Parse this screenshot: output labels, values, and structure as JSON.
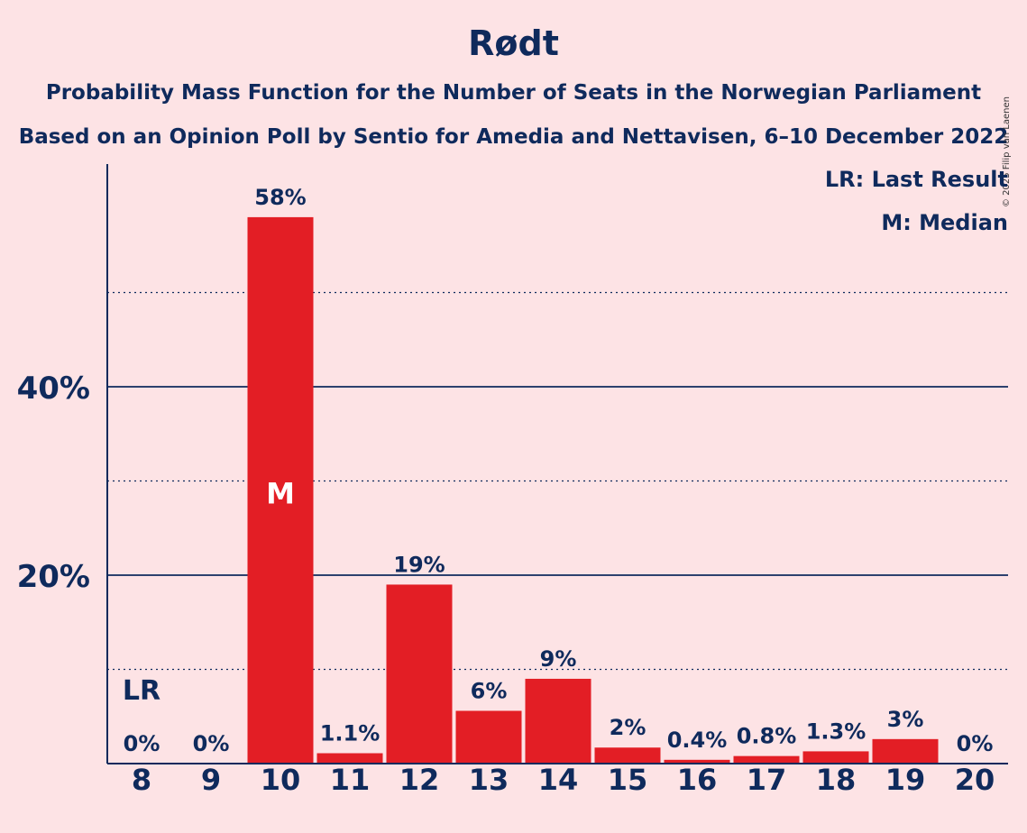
{
  "chart_data": {
    "type": "bar",
    "title": "Rødt",
    "subtitle_lines": [
      "Probability Mass Function for the Number of Seats in the Norwegian Parliament",
      "Based on an Opinion Poll by Sentio for Amedia and Nettavisen, 6–10 December 2022"
    ],
    "categories": [
      "8",
      "9",
      "10",
      "11",
      "12",
      "13",
      "14",
      "15",
      "16",
      "17",
      "18",
      "19",
      "20"
    ],
    "values": [
      0,
      0,
      58,
      1.1,
      19,
      5.6,
      9,
      1.7,
      0.4,
      0.8,
      1.3,
      2.6,
      0
    ],
    "labels": [
      "0%",
      "0%",
      "58%",
      "1.1%",
      "19%",
      "6%",
      "9%",
      "2%",
      "0.4%",
      "0.8%",
      "1.3%",
      "3%",
      "0%"
    ],
    "ylim": [
      0,
      63
    ],
    "yticks_major": [
      20,
      40
    ],
    "ytick_labels": [
      "20%",
      "40%"
    ],
    "yticks_minor": [
      10,
      30,
      50
    ],
    "last_result_category": "8",
    "last_result_marker": "LR",
    "median_category": "10",
    "median_marker": "M",
    "legend": [
      "LR: Last Result",
      "M: Median"
    ],
    "legend_position": "top-right",
    "bar_color": "#e31e25",
    "axis_color": "#0f2a5c",
    "background_color": "#fde3e5"
  },
  "copyright": "© 2025 Filip van Laenen"
}
